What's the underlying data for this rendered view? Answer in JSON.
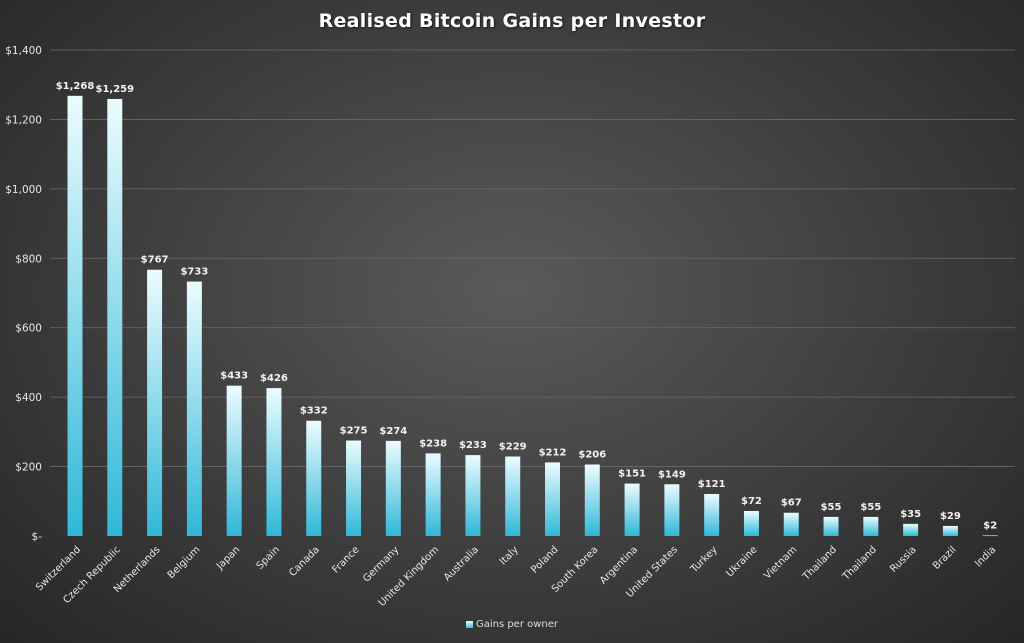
{
  "chart_data": {
    "type": "bar",
    "title": "Realised Bitcoin Gains per Investor",
    "categories": [
      "Switzerland",
      "Czech Republic",
      "Netherlands",
      "Belgium",
      "Japan",
      "Spain",
      "Canada",
      "France",
      "Germany",
      "United Kingdom",
      "Australia",
      "Italy",
      "Poland",
      "South Korea",
      "Argentina",
      "United States",
      "Turkey",
      "Ukraine",
      "Vietnam",
      "Thailand",
      "Thailand",
      "Russia",
      "Brazil",
      "India"
    ],
    "series": [
      {
        "name": "Gains per owner",
        "values": [
          1268,
          1259,
          767,
          733,
          433,
          426,
          332,
          275,
          274,
          238,
          233,
          229,
          212,
          206,
          151,
          149,
          121,
          72,
          67,
          55,
          55,
          35,
          29,
          2
        ],
        "labels": [
          "$1,268",
          "$1,259",
          "$767",
          "$733",
          "$433",
          "$426",
          "$332",
          "$275",
          "$274",
          "$238",
          "$233",
          "$229",
          "$212",
          "$206",
          "$151",
          "$149",
          "$121",
          "$72",
          "$67",
          "$55",
          "$55",
          "$35",
          "$29",
          "$2"
        ]
      }
    ],
    "ylim": [
      0,
      1400
    ],
    "yticks": [
      0,
      200,
      400,
      600,
      800,
      1000,
      1200,
      1400
    ],
    "ytick_labels": [
      "$-",
      "$200",
      "$400",
      "$600",
      "$800",
      "$1,000",
      "$1,200",
      "$1,400"
    ],
    "grid": true,
    "legend_position": "bottom",
    "colors": {
      "bar_top": "#ecfcff",
      "bar_bottom": "#2fb8d8",
      "background": "#3d3d3d",
      "text": "#e6e6e6"
    }
  }
}
